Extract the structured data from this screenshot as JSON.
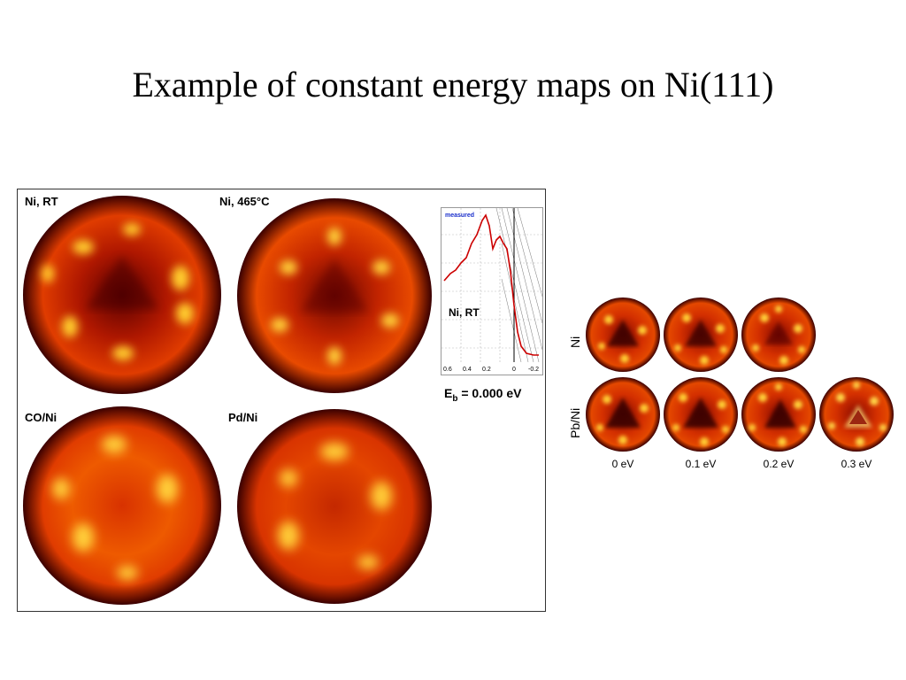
{
  "title": "Example of constant energy maps on Ni(111)",
  "left_panel": {
    "maps": [
      {
        "label": "Ni, RT"
      },
      {
        "label": "Ni, 465°C"
      },
      {
        "label": "CO/Ni"
      },
      {
        "label": "Pd/Ni"
      }
    ],
    "spectrum": {
      "legend": "measured",
      "label": "Ni, RT",
      "x_ticks": [
        "0.6",
        "0.4",
        "0.2",
        "0",
        "-0.2"
      ]
    },
    "binding_energy": {
      "symbol": "E",
      "subscript": "b",
      "value": " = 0.000 eV"
    }
  },
  "right_panel": {
    "row_labels": [
      "Ni",
      "Pb/Ni"
    ],
    "column_labels": [
      "0 eV",
      "0.1 eV",
      "0.2 eV",
      "0.3 eV"
    ]
  },
  "colors": {
    "map_dark": "#3a0000",
    "map_mid": "#d42a00",
    "map_bright": "#ffd23a",
    "spectrum_line": "#cc0000",
    "legend_text": "#1a2fcc"
  }
}
